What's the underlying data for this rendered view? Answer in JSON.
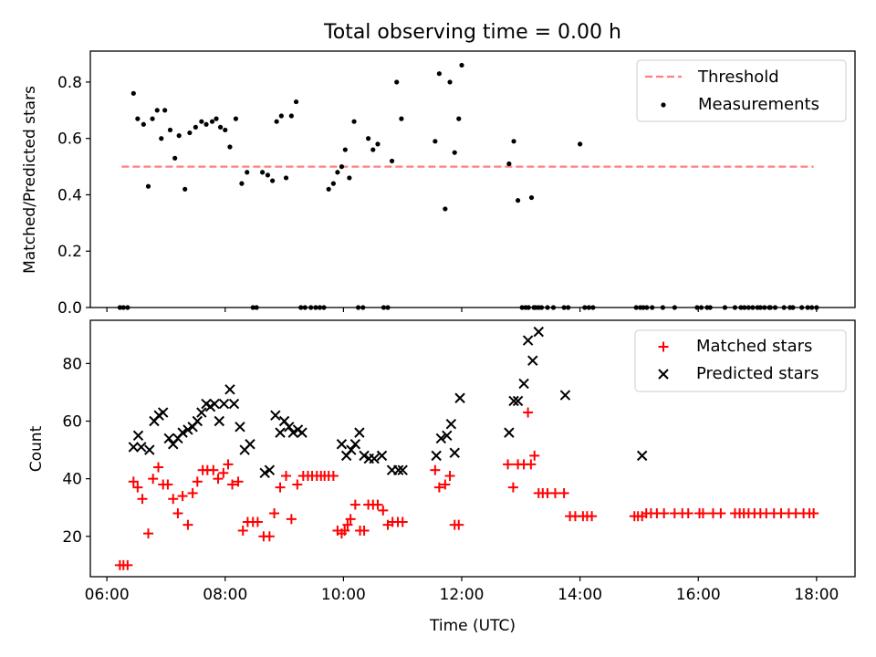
{
  "chart_data": [
    {
      "type": "scatter",
      "title": "Total observing time = 0.00 h",
      "xlabel": "",
      "ylabel": "Matched/Predicted stars",
      "x_unit": "hours UTC",
      "xlim": [
        5.72,
        18.65
      ],
      "ylim": [
        0.0,
        0.91
      ],
      "yticks": [
        0.0,
        0.2,
        0.4,
        0.6,
        0.8
      ],
      "ytick_labels": [
        "0.0",
        "0.2",
        "0.4",
        "0.6",
        "0.8"
      ],
      "xticks": [
        6,
        8,
        10,
        12,
        14,
        16,
        18
      ],
      "xtick_labels_shown": false,
      "grid": false,
      "legend_position": "upper right",
      "series": [
        {
          "name": "Threshold",
          "style": "dashed-line",
          "color": "#ff7f7f",
          "x": [
            6.25,
            17.95
          ],
          "y": [
            0.5,
            0.5
          ]
        },
        {
          "name": "Measurements",
          "style": "dot",
          "color": "#000000",
          "x": [
            6.22,
            6.28,
            6.35,
            6.45,
            6.52,
            6.62,
            6.7,
            6.77,
            6.85,
            6.92,
            6.98,
            7.07,
            7.15,
            7.22,
            7.32,
            7.4,
            7.5,
            7.6,
            7.68,
            7.78,
            7.85,
            7.92,
            8.0,
            8.08,
            8.18,
            8.28,
            8.37,
            8.47,
            8.53,
            8.63,
            8.72,
            8.8,
            8.87,
            8.95,
            9.03,
            9.12,
            9.2,
            9.28,
            9.35,
            9.45,
            9.53,
            9.6,
            9.67,
            9.75,
            9.83,
            9.9,
            9.97,
            10.03,
            10.1,
            10.18,
            10.25,
            10.33,
            10.42,
            10.5,
            10.58,
            10.68,
            10.75,
            10.82,
            10.9,
            10.98,
            11.55,
            11.62,
            11.72,
            11.8,
            11.88,
            11.95,
            12.0,
            12.8,
            12.88,
            12.95,
            13.02,
            13.08,
            13.13,
            13.18,
            13.22,
            13.25,
            13.3,
            13.35,
            13.45,
            13.55,
            13.73,
            13.8,
            14.0,
            14.08,
            14.15,
            14.22,
            14.95,
            15.02,
            15.07,
            15.13,
            15.22,
            15.4,
            15.6,
            15.98,
            16.05,
            16.15,
            16.2,
            16.45,
            16.62,
            16.72,
            16.78,
            16.85,
            16.92,
            17.0,
            17.05,
            17.12,
            17.2,
            17.22,
            17.3,
            17.45,
            17.55,
            17.6,
            17.75,
            17.85,
            17.92,
            18.0
          ],
          "y": [
            0.0,
            0.0,
            0.0,
            0.76,
            0.67,
            0.65,
            0.43,
            0.67,
            0.7,
            0.6,
            0.7,
            0.63,
            0.53,
            0.61,
            0.42,
            0.62,
            0.64,
            0.66,
            0.65,
            0.66,
            0.67,
            0.64,
            0.63,
            0.57,
            0.67,
            0.44,
            0.48,
            0.0,
            0.0,
            0.48,
            0.47,
            0.45,
            0.66,
            0.68,
            0.46,
            0.68,
            0.73,
            0.0,
            0.0,
            0.0,
            0.0,
            0.0,
            0.0,
            0.42,
            0.44,
            0.48,
            0.5,
            0.56,
            0.46,
            0.66,
            0.0,
            0.0,
            0.6,
            0.56,
            0.58,
            0.0,
            0.0,
            0.52,
            0.8,
            0.67,
            0.59,
            0.83,
            0.35,
            0.8,
            0.55,
            0.67,
            0.86,
            0.51,
            0.59,
            0.38,
            0.0,
            0.0,
            0.0,
            0.39,
            0.0,
            0.0,
            0.0,
            0.0,
            0.0,
            0.0,
            0.0,
            0.0,
            0.58,
            0.0,
            0.0,
            0.0,
            0.0,
            0.0,
            0.0,
            0.0,
            0.0,
            0.0,
            0.0,
            0.0,
            0.0,
            0.0,
            0.0,
            0.0,
            0.0,
            0.0,
            0.0,
            0.0,
            0.0,
            0.0,
            0.0,
            0.0,
            0.0,
            0.0,
            0.0,
            0.0,
            0.0,
            0.0,
            0.0,
            0.0,
            0.0,
            0.0
          ]
        }
      ]
    },
    {
      "type": "scatter",
      "title": "",
      "xlabel": "Time (UTC)",
      "ylabel": "Count",
      "x_unit": "hours UTC",
      "xlim": [
        5.72,
        18.65
      ],
      "ylim": [
        6,
        95
      ],
      "yticks": [
        20,
        40,
        60,
        80
      ],
      "ytick_labels": [
        "20",
        "40",
        "60",
        "80"
      ],
      "xticks": [
        6,
        8,
        10,
        12,
        14,
        16,
        18
      ],
      "xtick_labels": [
        "06:00",
        "08:00",
        "10:00",
        "12:00",
        "14:00",
        "16:00",
        "18:00"
      ],
      "grid": false,
      "legend_position": "upper right",
      "series": [
        {
          "name": "Matched stars",
          "marker": "+",
          "color": "#ff0000",
          "x": [
            6.22,
            6.28,
            6.35,
            6.45,
            6.52,
            6.6,
            6.7,
            6.78,
            6.87,
            6.95,
            7.03,
            7.12,
            7.2,
            7.28,
            7.37,
            7.45,
            7.53,
            7.62,
            7.7,
            7.8,
            7.88,
            7.97,
            8.05,
            8.12,
            8.22,
            8.3,
            8.38,
            8.47,
            8.55,
            8.65,
            8.75,
            8.83,
            8.93,
            9.03,
            9.12,
            9.22,
            9.32,
            9.4,
            9.47,
            9.55,
            9.62,
            9.68,
            9.75,
            9.83,
            9.9,
            9.97,
            10.02,
            10.07,
            10.12,
            10.2,
            10.28,
            10.35,
            10.42,
            10.5,
            10.58,
            10.67,
            10.75,
            10.83,
            10.92,
            11.0,
            11.55,
            11.62,
            11.72,
            11.8,
            11.88,
            11.95,
            12.78,
            12.87,
            12.95,
            13.05,
            13.12,
            13.17,
            13.23,
            13.3,
            13.37,
            13.45,
            13.58,
            13.73,
            13.83,
            13.92,
            14.05,
            14.12,
            14.2,
            14.92,
            14.98,
            15.05,
            15.12,
            15.2,
            15.3,
            15.42,
            15.6,
            15.73,
            15.83,
            16.02,
            16.08,
            16.25,
            16.38,
            16.62,
            16.7,
            16.77,
            16.85,
            16.95,
            17.05,
            17.15,
            17.28,
            17.4,
            17.53,
            17.65,
            17.78,
            17.88,
            17.95
          ],
          "y": [
            10,
            10,
            10,
            39,
            37,
            33,
            21,
            40,
            44,
            38,
            38,
            33,
            28,
            34,
            24,
            35,
            39,
            43,
            43,
            43,
            40,
            42,
            45,
            38,
            39,
            22,
            25,
            25,
            25,
            20,
            20,
            28,
            37,
            41,
            26,
            38,
            41,
            41,
            41,
            41,
            41,
            41,
            41,
            41,
            22,
            21,
            22,
            24,
            26,
            31,
            22,
            22,
            31,
            31,
            31,
            29,
            24,
            25,
            25,
            25,
            43,
            37,
            38,
            41,
            24,
            24,
            45,
            37,
            45,
            45,
            63,
            45,
            48,
            35,
            35,
            35,
            35,
            35,
            27,
            27,
            27,
            27,
            27,
            27,
            27,
            27,
            28,
            28,
            28,
            28,
            28,
            28,
            28,
            28,
            28,
            28,
            28,
            28,
            28,
            28,
            28,
            28,
            28,
            28,
            28,
            28,
            28,
            28,
            28,
            28,
            28
          ]
        },
        {
          "name": "Predicted stars",
          "marker": "x",
          "color": "#000000",
          "x": [
            6.45,
            6.53,
            6.58,
            6.72,
            6.8,
            6.88,
            6.95,
            7.05,
            7.12,
            7.2,
            7.28,
            7.37,
            7.45,
            7.53,
            7.6,
            7.68,
            7.75,
            7.82,
            7.9,
            7.98,
            8.08,
            8.15,
            8.25,
            8.33,
            8.42,
            8.67,
            8.75,
            8.85,
            8.93,
            9.0,
            9.08,
            9.15,
            9.23,
            9.3,
            9.97,
            10.05,
            10.13,
            10.2,
            10.27,
            10.35,
            10.43,
            10.52,
            10.65,
            10.82,
            10.93,
            11.0,
            11.57,
            11.65,
            11.75,
            11.82,
            11.88,
            11.97,
            12.8,
            12.88,
            12.95,
            13.05,
            13.12,
            13.2,
            13.3,
            13.75,
            15.05
          ],
          "y": [
            51,
            55,
            51,
            50,
            60,
            62,
            63,
            54,
            52,
            54,
            56,
            57,
            58,
            60,
            63,
            66,
            65,
            66,
            60,
            66,
            71,
            66,
            58,
            50,
            52,
            42,
            43,
            62,
            56,
            60,
            58,
            56,
            57,
            56,
            52,
            48,
            50,
            52,
            56,
            48,
            47,
            47,
            48,
            43,
            43,
            43,
            48,
            54,
            55,
            59,
            49,
            68,
            56,
            67,
            67,
            73,
            88,
            81,
            91,
            69,
            48
          ]
        }
      ]
    }
  ]
}
